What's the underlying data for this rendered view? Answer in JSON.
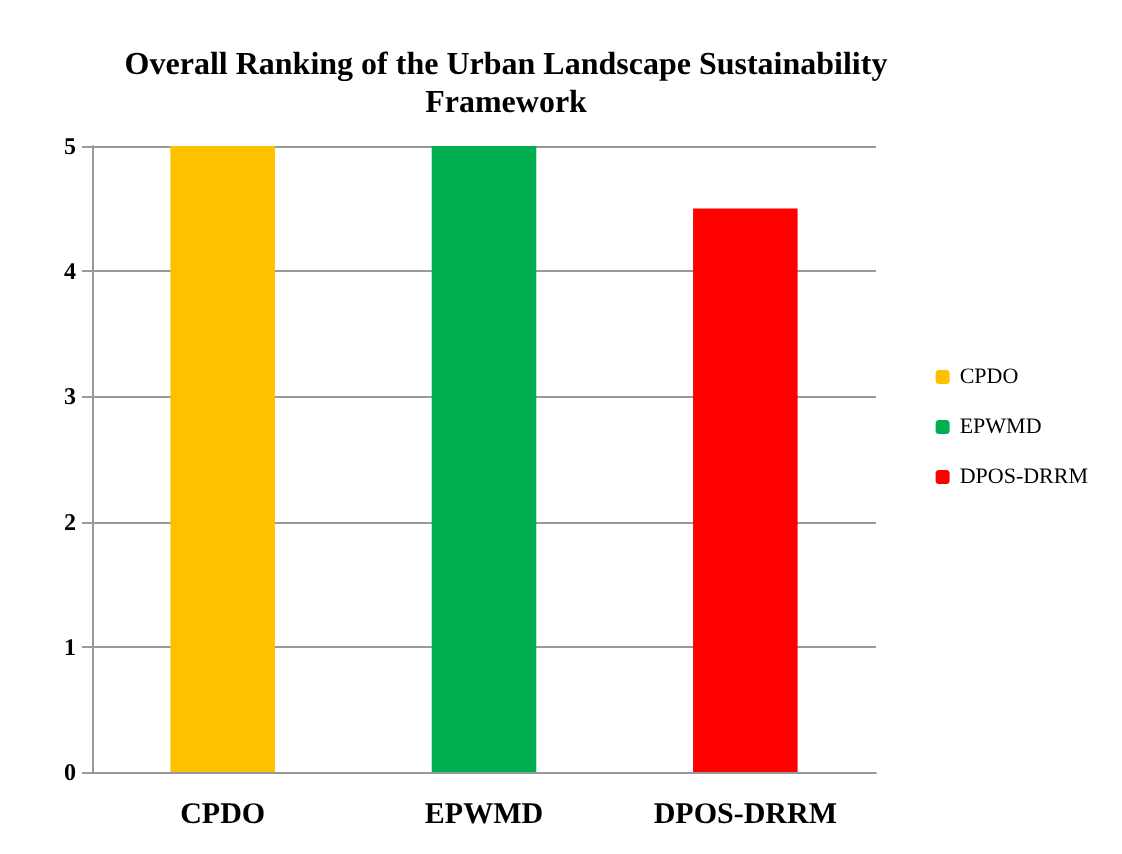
{
  "chart_data": {
    "type": "bar",
    "title": "Overall Ranking of the Urban Landscape Sustainability\nFramework",
    "categories": [
      "CPDO",
      "EPWMD",
      "DPOS-DRRM"
    ],
    "series": [
      {
        "name": "CPDO",
        "color": "#ffc000",
        "values": [
          5,
          null,
          null
        ]
      },
      {
        "name": "EPWMD",
        "color": "#00b050",
        "values": [
          null,
          5,
          null
        ]
      },
      {
        "name": "DPOS-DRRM",
        "color": "#ff0000",
        "values": [
          null,
          null,
          4.5
        ]
      }
    ],
    "stacked": true,
    "ylim": [
      0,
      5
    ],
    "yticks": [
      0,
      1,
      2,
      3,
      4,
      5
    ],
    "grid": "y",
    "legend": "right"
  }
}
